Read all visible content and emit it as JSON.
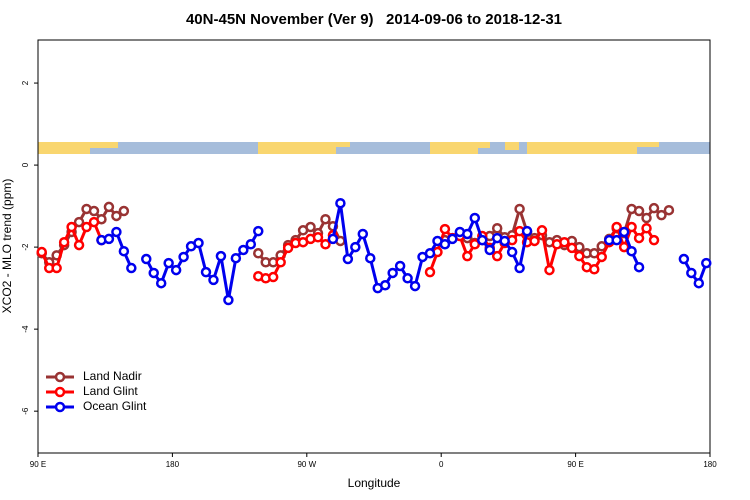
{
  "chart_data": {
    "type": "line",
    "title": "40N-45N November (Ver 9)   2014-09-06 to 2018-12-31",
    "x_label": "Longitude",
    "y_label": "XCO2 - MLO trend (ppm)",
    "xlim": [
      90,
      540
    ],
    "xticks": [
      {
        "value": 90,
        "label": "90 E"
      },
      180,
      {
        "value": 270,
        "label": "90 W"
      },
      {
        "value": 360,
        "label": "0"
      },
      {
        "value": 450,
        "label": "90 E"
      },
      {
        "value": 540,
        "label": "180"
      }
    ],
    "ylim": [
      -7.02,
      3.05
    ],
    "yticks": [
      -6,
      -4,
      -2,
      0,
      2
    ],
    "legend": "bottom-left",
    "series": [
      {
        "name": "Land Nadir",
        "color": "#993333",
        "x": [
          92.5,
          97.5,
          102.5,
          107.5,
          112.5,
          117.5,
          122.5,
          127.5,
          132.5,
          137.5,
          142.5,
          147.5,
          152.5,
          237.5,
          242.5,
          247.5,
          252.5,
          257.5,
          262.5,
          267.5,
          272.5,
          277.5,
          282.5,
          287.5,
          292.5,
          297.5,
          362.5,
          367.5,
          372.5,
          377.5,
          382.5,
          387.5,
          392.5,
          397.5,
          402.5,
          407.5,
          412.5,
          417.5,
          422.5,
          427.5,
          432.5,
          437.5,
          442.5,
          447.5,
          452.5,
          457.5,
          462.5,
          467.5,
          472.5,
          477.5,
          482.5,
          487.5,
          492.5,
          497.5,
          502.5,
          507.5,
          512.5
        ],
        "values": [
          -2.15,
          -2.37,
          -2.2,
          -1.95,
          -1.63,
          -1.39,
          -1.07,
          -1.12,
          -1.32,
          -1.02,
          -1.24,
          -1.12,
          null,
          -2.15,
          -2.37,
          -2.37,
          -2.2,
          -1.95,
          -1.83,
          -1.59,
          -1.51,
          -1.66,
          -1.32,
          -1.49,
          -1.85,
          null,
          -1.83,
          -1.78,
          -1.68,
          -1.78,
          -1.9,
          -1.83,
          -1.73,
          -1.54,
          -1.76,
          -1.71,
          -1.07,
          -1.63,
          -1.78,
          -1.71,
          -1.88,
          -1.83,
          -1.95,
          -1.85,
          -2.0,
          -2.15,
          -2.15,
          -1.98,
          -1.8,
          -1.54,
          -1.66,
          -1.07,
          -1.12,
          -1.29,
          -1.05,
          -1.22,
          -1.1
        ]
      },
      {
        "name": "Land Glint",
        "color": "#ff0000",
        "x": [
          92.5,
          97.5,
          102.5,
          107.5,
          112.5,
          117.5,
          122.5,
          127.5,
          132.5,
          137.5,
          237.5,
          242.5,
          247.5,
          252.5,
          257.5,
          262.5,
          267.5,
          272.5,
          277.5,
          282.5,
          287.5,
          292.5,
          352.5,
          357.5,
          362.5,
          367.5,
          372.5,
          377.5,
          382.5,
          387.5,
          392.5,
          397.5,
          402.5,
          407.5,
          412.5,
          417.5,
          422.5,
          427.5,
          432.5,
          437.5,
          442.5,
          447.5,
          452.5,
          457.5,
          462.5,
          467.5,
          472.5,
          477.5,
          482.5,
          487.5,
          492.5,
          497.5,
          502.5
        ],
        "values": [
          -2.12,
          -2.51,
          -2.51,
          -1.88,
          -1.51,
          -1.95,
          -1.51,
          -1.39,
          -1.83,
          null,
          -2.71,
          -2.76,
          -2.73,
          -2.37,
          -2.02,
          -1.9,
          -1.88,
          -1.8,
          -1.76,
          -1.93,
          -1.71,
          null,
          -2.61,
          -2.12,
          -1.56,
          -1.78,
          -1.73,
          -2.22,
          -1.93,
          -1.73,
          -2.02,
          -2.22,
          -1.9,
          -1.83,
          -1.61,
          -1.88,
          -1.85,
          -1.59,
          -2.56,
          -1.93,
          -1.88,
          -2.02,
          -2.22,
          -2.49,
          -2.54,
          -2.24,
          -1.88,
          -1.51,
          -2.0,
          -1.51,
          -1.78,
          -1.54,
          -1.83
        ]
      },
      {
        "name": "Ocean Glint",
        "color": "#0000ee",
        "x": [
          132.5,
          137.5,
          142.5,
          147.5,
          152.5,
          157.5,
          162.5,
          167.5,
          172.5,
          177.5,
          182.5,
          187.5,
          192.5,
          197.5,
          202.5,
          207.5,
          212.5,
          217.5,
          222.5,
          227.5,
          232.5,
          237.5,
          242.5,
          287.5,
          292.5,
          297.5,
          302.5,
          307.5,
          312.5,
          317.5,
          322.5,
          327.5,
          332.5,
          337.5,
          342.5,
          347.5,
          352.5,
          357.5,
          362.5,
          367.5,
          372.5,
          377.5,
          382.5,
          387.5,
          392.5,
          397.5,
          402.5,
          407.5,
          412.5,
          417.5,
          422.5,
          472.5,
          477.5,
          482.5,
          487.5,
          492.5,
          497.5,
          522.5,
          527.5,
          532.5,
          537.5
        ],
        "values": [
          -1.83,
          -1.8,
          -1.63,
          -2.1,
          -2.51,
          null,
          -2.29,
          -2.63,
          -2.88,
          -2.39,
          -2.56,
          -2.24,
          -1.98,
          -1.9,
          -2.61,
          -2.8,
          -2.22,
          -3.29,
          -2.27,
          -2.07,
          -1.93,
          -1.61,
          null,
          -1.8,
          -0.93,
          -2.29,
          -2.0,
          -1.68,
          -2.27,
          -3.0,
          -2.93,
          -2.63,
          -2.46,
          -2.76,
          -2.95,
          -2.24,
          -2.15,
          -1.85,
          -1.93,
          -1.8,
          -1.63,
          -1.68,
          -1.29,
          -1.83,
          -2.07,
          -1.78,
          -1.85,
          -2.12,
          -2.51,
          -1.61,
          null,
          -1.83,
          -1.83,
          -1.63,
          -2.1,
          -2.49,
          null,
          -2.29,
          -2.63,
          -2.88,
          -2.39
        ]
      }
    ]
  }
}
